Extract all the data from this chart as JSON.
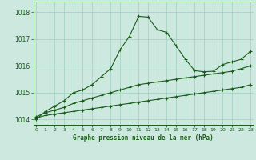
{
  "title": "Graphe pression niveau de la mer (hPa)",
  "background_color": "#cce8df",
  "grid_color": "#9ecfbf",
  "line_color": "#1a5c1a",
  "ylim": [
    1013.8,
    1018.4
  ],
  "xlim": [
    -0.3,
    23.3
  ],
  "yticks": [
    1014,
    1015,
    1016,
    1017,
    1018
  ],
  "xticks": [
    0,
    1,
    2,
    3,
    4,
    5,
    6,
    7,
    8,
    9,
    10,
    11,
    12,
    13,
    14,
    15,
    16,
    17,
    18,
    19,
    20,
    21,
    22,
    23
  ],
  "series1": [
    1014.0,
    1014.3,
    1014.5,
    1014.7,
    1015.0,
    1015.1,
    1015.3,
    1015.6,
    1015.9,
    1016.6,
    1017.1,
    1017.85,
    1017.82,
    1017.35,
    1017.25,
    1016.75,
    1016.25,
    1015.82,
    1015.78,
    1015.8,
    1016.05,
    1016.15,
    1016.25,
    1016.55
  ],
  "series2": [
    1014.05,
    1014.15,
    1014.2,
    1014.25,
    1014.3,
    1014.35,
    1014.4,
    1014.45,
    1014.5,
    1014.55,
    1014.6,
    1014.65,
    1014.7,
    1014.75,
    1014.8,
    1014.85,
    1014.9,
    1014.95,
    1015.0,
    1015.05,
    1015.1,
    1015.15,
    1015.2,
    1015.3
  ],
  "series3": [
    1014.1,
    1014.25,
    1014.35,
    1014.45,
    1014.6,
    1014.7,
    1014.8,
    1014.9,
    1015.0,
    1015.1,
    1015.2,
    1015.3,
    1015.35,
    1015.4,
    1015.45,
    1015.5,
    1015.55,
    1015.6,
    1015.65,
    1015.7,
    1015.75,
    1015.8,
    1015.9,
    1016.0
  ]
}
